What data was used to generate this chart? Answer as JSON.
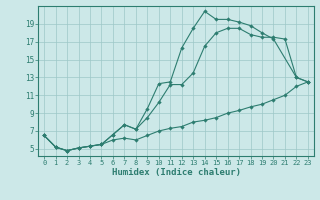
{
  "xlabel": "Humidex (Indice chaleur)",
  "bg_color": "#cce8e8",
  "line_color": "#2d7d70",
  "grid_color": "#9ec8c8",
  "xlim": [
    -0.5,
    23.5
  ],
  "ylim": [
    4.2,
    21.0
  ],
  "xticks": [
    0,
    1,
    2,
    3,
    4,
    5,
    6,
    7,
    8,
    9,
    10,
    11,
    12,
    13,
    14,
    15,
    16,
    17,
    18,
    19,
    20,
    21,
    22,
    23
  ],
  "yticks": [
    5,
    7,
    9,
    11,
    13,
    15,
    17,
    19
  ],
  "line1": {
    "x": [
      0,
      1,
      2,
      3,
      4,
      5,
      6,
      7,
      8,
      9,
      10,
      11,
      12,
      13,
      14,
      15,
      16,
      17,
      18,
      19,
      20,
      21,
      22,
      23
    ],
    "y": [
      6.5,
      5.2,
      4.8,
      5.1,
      5.3,
      5.5,
      6.0,
      6.2,
      6.0,
      6.5,
      7.0,
      7.3,
      7.5,
      8.0,
      8.2,
      8.5,
      9.0,
      9.3,
      9.7,
      10.0,
      10.5,
      11.0,
      12.0,
      12.5
    ]
  },
  "line2": {
    "x": [
      0,
      1,
      2,
      3,
      4,
      5,
      6,
      7,
      8,
      9,
      10,
      11,
      12,
      13,
      14,
      15,
      16,
      17,
      18,
      19,
      20,
      21,
      22,
      23
    ],
    "y": [
      6.5,
      5.2,
      4.8,
      5.1,
      5.3,
      5.5,
      6.6,
      7.7,
      7.2,
      8.5,
      10.2,
      12.2,
      12.2,
      13.5,
      16.5,
      18.0,
      18.5,
      18.5,
      17.8,
      17.5,
      17.5,
      17.3,
      13.0,
      12.5
    ]
  },
  "line3": {
    "x": [
      0,
      1,
      2,
      3,
      4,
      5,
      6,
      7,
      8,
      9,
      10,
      11,
      12,
      13,
      14,
      15,
      16,
      17,
      18,
      19,
      20,
      22,
      23
    ],
    "y": [
      6.5,
      5.2,
      4.8,
      5.1,
      5.3,
      5.5,
      6.6,
      7.7,
      7.2,
      9.5,
      12.3,
      12.5,
      16.3,
      18.5,
      20.4,
      19.5,
      19.5,
      19.2,
      18.8,
      18.0,
      17.3,
      13.0,
      12.5
    ]
  }
}
